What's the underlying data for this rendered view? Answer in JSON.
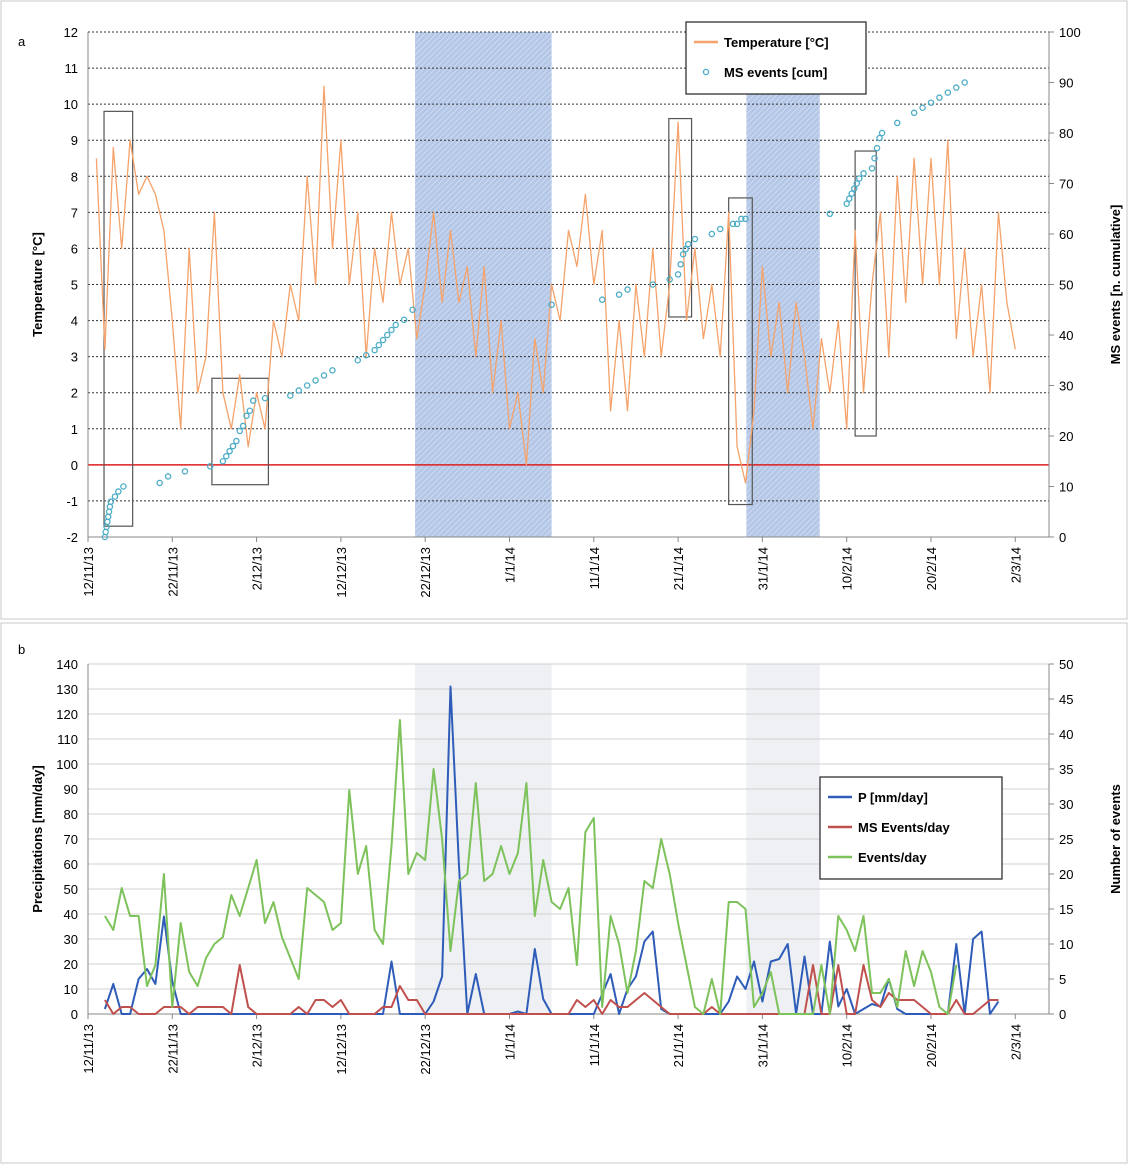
{
  "chart_data": [
    {
      "type": "line",
      "panel_label": "a",
      "y_label": "Temperature [°C]",
      "y2_label": "MS events [n. cumulative]",
      "xlim": [
        0,
        114
      ],
      "xticks": [
        {
          "value": 0,
          "label": "12/11/13"
        },
        {
          "value": 10,
          "label": "22/11/13"
        },
        {
          "value": 20,
          "label": "2/12/13"
        },
        {
          "value": 30,
          "label": "12/12/13"
        },
        {
          "value": 40,
          "label": "22/12/13"
        },
        {
          "value": 50,
          "label": "1/1/14"
        },
        {
          "value": 60,
          "label": "11/1/14"
        },
        {
          "value": 70,
          "label": "21/1/14"
        },
        {
          "value": 80,
          "label": "31/1/14"
        },
        {
          "value": 90,
          "label": "10/2/14"
        },
        {
          "value": 100,
          "label": "20/2/14"
        },
        {
          "value": 110,
          "label": "2/3/14"
        }
      ],
      "ylim": [
        -2,
        12
      ],
      "yticks": [
        -2,
        -1,
        0,
        1,
        2,
        3,
        4,
        5,
        6,
        7,
        8,
        9,
        10,
        11,
        12
      ],
      "y2lim": [
        0,
        100
      ],
      "y2ticks": [
        0,
        10,
        20,
        30,
        40,
        50,
        60,
        70,
        80,
        90,
        100
      ],
      "grid": true,
      "grid_color": "#333333",
      "grid_dash": true,
      "zero_line": true,
      "zero_line_color": "#e02020",
      "legend_position": "top-right",
      "highlight_color": "#b4c7e7",
      "highlight_hatch": true,
      "highlight_spans": [
        [
          38.8,
          55
        ],
        [
          78.1,
          86.8
        ]
      ],
      "boxes": [
        {
          "x": [
            1.9,
            5.3
          ],
          "y": [
            -1.7,
            9.8
          ]
        },
        {
          "x": [
            14.7,
            21.4
          ],
          "y": [
            -0.55,
            2.4
          ]
        },
        {
          "x": [
            68.9,
            71.6
          ],
          "y": [
            4.1,
            9.6
          ]
        },
        {
          "x": [
            76,
            78.8
          ],
          "y": [
            -1.1,
            7.4
          ]
        },
        {
          "x": [
            91,
            93.5
          ],
          "y": [
            0.8,
            8.7
          ]
        }
      ],
      "series": [
        {
          "name": "Temperature [°C]",
          "style": "line",
          "color": "#f5a36b",
          "x": [
            1,
            2,
            3,
            4,
            5,
            6,
            7,
            8,
            9,
            10,
            11,
            12,
            13,
            14,
            15,
            16,
            17,
            18,
            19,
            20,
            21,
            22,
            23,
            24,
            25,
            26,
            27,
            28,
            29,
            30,
            31,
            32,
            33,
            34,
            35,
            36,
            37,
            38,
            39,
            40,
            41,
            42,
            43,
            44,
            45,
            46,
            47,
            48,
            49,
            50,
            51,
            52,
            53,
            54,
            55,
            56,
            57,
            58,
            59,
            60,
            61,
            62,
            63,
            64,
            65,
            66,
            67,
            68,
            69,
            70,
            71,
            72,
            73,
            74,
            75,
            76,
            77,
            78,
            79,
            80,
            81,
            82,
            83,
            84,
            85,
            86,
            87,
            88,
            89,
            90,
            91,
            92,
            93,
            94,
            95,
            96,
            97,
            98,
            99,
            100,
            101,
            102,
            103,
            104,
            105,
            106,
            107,
            108,
            109,
            110
          ],
          "values": [
            8.5,
            3.2,
            8.8,
            6,
            9,
            7.5,
            8,
            7.5,
            6.5,
            4,
            1,
            6,
            2,
            3,
            7,
            2,
            1,
            2.5,
            0.5,
            2,
            1,
            4,
            3,
            5,
            4,
            8,
            5,
            10.5,
            6,
            9,
            5,
            7,
            3,
            6,
            4.5,
            7,
            5,
            6,
            3.5,
            5,
            7,
            4.5,
            6.5,
            4.5,
            5.5,
            3,
            5.5,
            2,
            4,
            1,
            2,
            0,
            3.5,
            2,
            5,
            4,
            6.5,
            5.5,
            7.5,
            5,
            6.5,
            1.5,
            4,
            1.5,
            5,
            3,
            6,
            3,
            5,
            9.5,
            4,
            6,
            3.5,
            5,
            3,
            7,
            0.5,
            -0.5,
            1.5,
            5.5,
            3,
            4.5,
            2,
            4.5,
            3,
            1,
            3.5,
            2,
            4,
            1,
            6.5,
            2,
            5,
            7,
            3,
            8,
            4.5,
            8.5,
            5,
            8.5,
            5,
            9,
            3.5,
            6,
            3,
            5,
            2,
            7,
            4.5,
            3.2
          ]
        },
        {
          "name": "MS events [cum]",
          "style": "marker",
          "color": "#4bacc6",
          "axis": "y2",
          "x": [
            2,
            2.1,
            2.2,
            2.3,
            2.4,
            2.5,
            2.6,
            2.7,
            3.2,
            3.6,
            4.2,
            8.5,
            9.5,
            11.5,
            14.5,
            16,
            16.4,
            16.8,
            17.2,
            17.6,
            18,
            18.4,
            18.8,
            19.2,
            19.6,
            21,
            24,
            25,
            26,
            27,
            28,
            29,
            32,
            33,
            34,
            34.5,
            35,
            35.5,
            36,
            36.5,
            37.5,
            38.5,
            55,
            61,
            63,
            64,
            67,
            69,
            70,
            70.3,
            70.6,
            70.9,
            71.2,
            72,
            74,
            75,
            76.5,
            77,
            77.5,
            78,
            88,
            90,
            90.3,
            90.6,
            90.9,
            91.2,
            91.5,
            92,
            93,
            93.3,
            93.6,
            93.9,
            94.2,
            96,
            98,
            99,
            100,
            101,
            102,
            103,
            104
          ],
          "values": [
            0,
            1,
            2,
            3,
            4,
            5,
            6,
            7,
            8,
            9,
            10,
            10.7,
            12,
            13,
            14,
            15,
            16,
            17,
            18,
            19,
            21,
            22,
            24,
            25,
            27,
            27.5,
            28,
            29,
            30,
            31,
            32,
            33,
            35,
            36,
            37,
            38,
            39,
            40,
            41,
            42,
            43,
            45,
            46,
            47,
            48,
            49,
            50,
            51,
            52,
            54,
            56,
            57,
            58,
            59,
            60,
            61,
            62,
            62,
            63,
            63,
            64,
            66,
            67,
            68,
            69,
            70,
            71,
            72,
            73,
            75,
            77,
            79,
            80,
            82,
            84,
            85,
            86,
            87,
            88,
            89,
            90
          ]
        }
      ]
    },
    {
      "type": "line",
      "panel_label": "b",
      "y_label": "Precipitations [mm/day]",
      "y2_label": "Number of events",
      "xlim": [
        0,
        114
      ],
      "xticks": [
        {
          "value": 0,
          "label": "12/11/13"
        },
        {
          "value": 10,
          "label": "22/11/13"
        },
        {
          "value": 20,
          "label": "2/12/13"
        },
        {
          "value": 30,
          "label": "12/12/13"
        },
        {
          "value": 40,
          "label": "22/12/13"
        },
        {
          "value": 50,
          "label": "1/1/14"
        },
        {
          "value": 60,
          "label": "11/1/14"
        },
        {
          "value": 70,
          "label": "21/1/14"
        },
        {
          "value": 80,
          "label": "31/1/14"
        },
        {
          "value": 90,
          "label": "10/2/14"
        },
        {
          "value": 100,
          "label": "20/2/14"
        },
        {
          "value": 110,
          "label": "2/3/14"
        }
      ],
      "ylim": [
        0,
        140
      ],
      "yticks": [
        0,
        10,
        20,
        30,
        40,
        50,
        60,
        70,
        80,
        90,
        100,
        110,
        120,
        130,
        140
      ],
      "y2lim": [
        0,
        50
      ],
      "y2ticks": [
        0,
        5,
        10,
        15,
        20,
        25,
        30,
        35,
        40,
        45,
        50
      ],
      "grid": true,
      "grid_color": "#d0d0d0",
      "grid_dash": false,
      "zero_line": false,
      "legend_position": "right",
      "highlight_color": "#eef0f4",
      "highlight_hatch": false,
      "highlight_spans": [
        [
          38.8,
          55
        ],
        [
          78.1,
          86.8
        ]
      ],
      "x": [
        2,
        3,
        4,
        5,
        6,
        7,
        8,
        9,
        10,
        11,
        12,
        13,
        14,
        15,
        16,
        17,
        18,
        19,
        20,
        21,
        22,
        23,
        24,
        25,
        26,
        27,
        28,
        29,
        30,
        31,
        32,
        33,
        34,
        35,
        36,
        37,
        38,
        39,
        40,
        41,
        42,
        43,
        44,
        45,
        46,
        47,
        48,
        49,
        50,
        51,
        52,
        53,
        54,
        55,
        56,
        57,
        58,
        59,
        60,
        61,
        62,
        63,
        64,
        65,
        66,
        67,
        68,
        69,
        70,
        71,
        72,
        73,
        74,
        75,
        76,
        77,
        78,
        79,
        80,
        81,
        82,
        83,
        84,
        85,
        86,
        87,
        88,
        89,
        90,
        91,
        92,
        93,
        94,
        95,
        96,
        97,
        98,
        99,
        100,
        101,
        102,
        103,
        104,
        105,
        106,
        107,
        108
      ],
      "series": [
        {
          "name": "P [mm/day]",
          "style": "line",
          "color": "#2e5cb8",
          "values": [
            2,
            12,
            0,
            0,
            14,
            18,
            12,
            39,
            13,
            0,
            0,
            0,
            0,
            0,
            0,
            0,
            0,
            0,
            0,
            0,
            0,
            0,
            0,
            0,
            0,
            0,
            0,
            0,
            0,
            0,
            0,
            0,
            0,
            0,
            21,
            0,
            0,
            0,
            0,
            5,
            15,
            131,
            60,
            0,
            16,
            0,
            0,
            0,
            0,
            1,
            0,
            26,
            6,
            0,
            0,
            0,
            0,
            0,
            0,
            8,
            16,
            0,
            10,
            15,
            29,
            33,
            2,
            0,
            0,
            0,
            0,
            0,
            0,
            0,
            5,
            15,
            10,
            21,
            5,
            21,
            22,
            28,
            0,
            23,
            0,
            0,
            29,
            3,
            10,
            0,
            2,
            4,
            3,
            14,
            2,
            0,
            0,
            0,
            0,
            0,
            0,
            28,
            0,
            30,
            33,
            0,
            5
          ]
        },
        {
          "name": "MS Events/day",
          "style": "line",
          "color": "#c0504d",
          "axis": "y2",
          "values": [
            2,
            0,
            1,
            1,
            0,
            0,
            0,
            1,
            1,
            1,
            0,
            1,
            1,
            1,
            1,
            0,
            7,
            1,
            0,
            0,
            0,
            0,
            0,
            1,
            0,
            2,
            2,
            1,
            2,
            0,
            0,
            0,
            0,
            1,
            1,
            4,
            2,
            2,
            0,
            0,
            0,
            0,
            0,
            0,
            0,
            0,
            0,
            0,
            0,
            0,
            0,
            0,
            0,
            0,
            0,
            0,
            2,
            1,
            2,
            0,
            2,
            1,
            1,
            2,
            3,
            2,
            1,
            0,
            0,
            0,
            0,
            0,
            1,
            0,
            0,
            0,
            0,
            0,
            0,
            0,
            0,
            0,
            0,
            0,
            7,
            0,
            0,
            7,
            0,
            0,
            7,
            2,
            1,
            3,
            2,
            2,
            2,
            1,
            0,
            0,
            0,
            2,
            0,
            0,
            1,
            2,
            2
          ]
        },
        {
          "name": "Events/day",
          "style": "line",
          "color": "#7dc25a",
          "axis": "y2",
          "values": [
            14,
            12,
            18,
            14,
            14,
            4,
            7,
            20,
            1,
            13,
            6,
            4,
            8,
            10,
            11,
            17,
            14,
            18,
            22,
            13,
            16,
            11,
            8,
            5,
            18,
            17,
            16,
            12,
            13,
            32,
            20,
            24,
            12,
            10,
            24,
            42,
            20,
            23,
            22,
            35,
            25,
            9,
            19,
            20,
            33,
            19,
            20,
            24,
            20,
            23,
            33,
            14,
            22,
            16,
            15,
            18,
            7,
            26,
            28,
            1,
            14,
            10,
            3,
            9,
            19,
            18,
            25,
            20,
            13,
            7,
            1,
            0,
            5,
            0,
            16,
            16,
            15,
            1,
            3,
            6,
            0,
            0,
            0,
            0,
            0,
            7,
            0,
            14,
            12,
            9,
            14,
            3,
            3,
            5,
            1,
            9,
            4,
            9,
            6,
            1,
            0,
            7,
            null,
            null,
            null,
            null,
            null
          ]
        }
      ]
    }
  ]
}
